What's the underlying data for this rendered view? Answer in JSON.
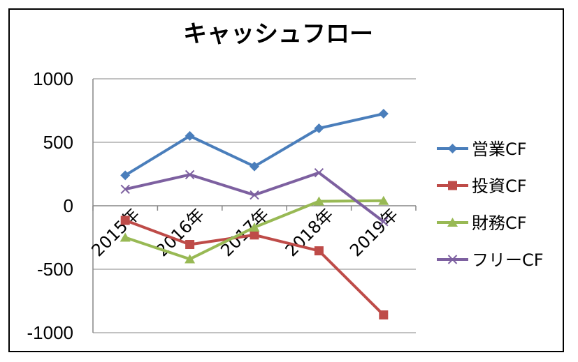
{
  "chart_data": {
    "type": "line",
    "title": "キャッシュフロー",
    "categories": [
      "2015年",
      "2016年",
      "2017年",
      "2018年",
      "2019年"
    ],
    "ylim": [
      -1000,
      1000
    ],
    "yticks": [
      1000,
      500,
      0,
      -500,
      -1000
    ],
    "grid": true,
    "legend_position": "right",
    "series": [
      {
        "name": "営業CF",
        "values": [
          240,
          550,
          310,
          610,
          725
        ],
        "color": "#4a7ebb",
        "marker": "diamond"
      },
      {
        "name": "投資CF",
        "values": [
          -115,
          -305,
          -230,
          -355,
          -860
        ],
        "color": "#be4b48",
        "marker": "square"
      },
      {
        "name": "財務CF",
        "values": [
          -250,
          -420,
          -170,
          35,
          40
        ],
        "color": "#98b954",
        "marker": "triangle"
      },
      {
        "name": "フリーCF",
        "values": [
          130,
          245,
          85,
          260,
          -125
        ],
        "color": "#7d60a0",
        "marker": "x"
      }
    ]
  }
}
